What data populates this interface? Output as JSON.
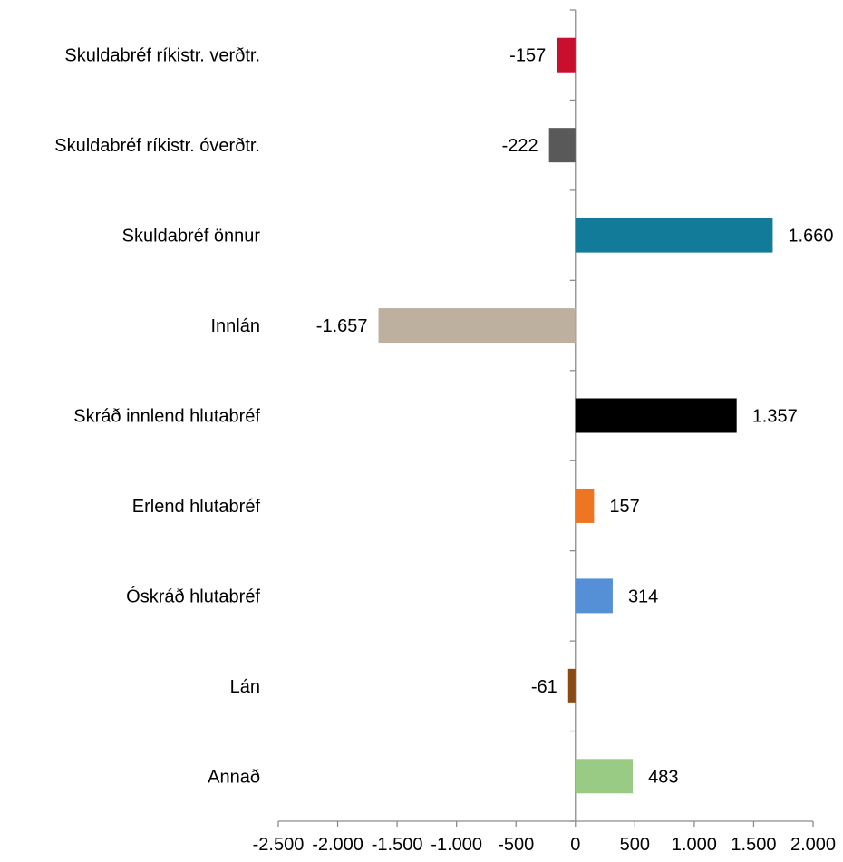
{
  "chart_data": {
    "type": "bar",
    "orientation": "horizontal",
    "categories": [
      "Skuldabréf ríkistr. verðtr.",
      "Skuldabréf ríkistr. óverðtr.",
      "Skuldabréf önnur",
      "Innlán",
      "Skráð innlend hlutabréf",
      "Erlend hlutabréf",
      "Óskráð hlutabréf",
      "Lán",
      "Annað"
    ],
    "values": [
      -157,
      -222,
      1660,
      -1657,
      1357,
      157,
      314,
      -61,
      483
    ],
    "data_labels": [
      "-157",
      "-222",
      "1.660",
      "-1.657",
      "1.357",
      "157",
      "314",
      "-61",
      "483"
    ],
    "colors": [
      "#c8102e",
      "#595959",
      "#137b9a",
      "#bdb09e",
      "#000000",
      "#ee7623",
      "#5590d6",
      "#8b4a12",
      "#9acb84"
    ],
    "xlim": [
      -2500,
      2000
    ],
    "x_ticks": [
      -2500,
      -2000,
      -1500,
      -1000,
      -500,
      0,
      500,
      1000,
      1500,
      2000
    ],
    "x_tick_labels": [
      "-2.500",
      "-2.000",
      "-1.500",
      "-1.000",
      "-500",
      "0",
      "500",
      "1.000",
      "1.500",
      "2.000"
    ],
    "title": "",
    "xlabel": "",
    "ylabel": "",
    "grid": false,
    "legend": "none"
  }
}
